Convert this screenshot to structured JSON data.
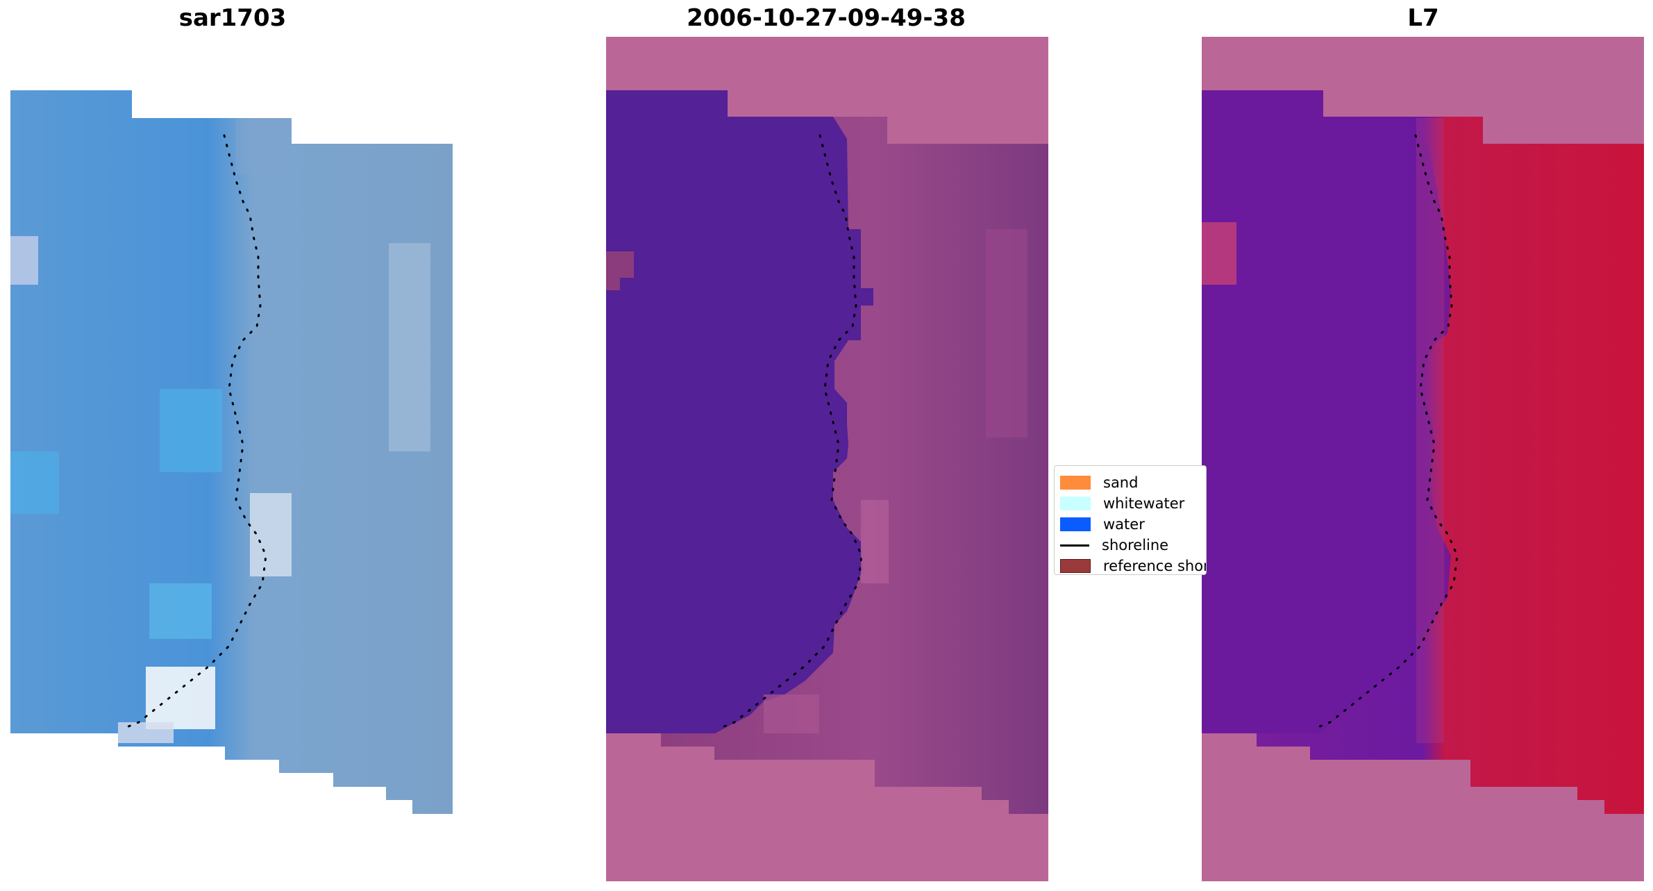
{
  "panels": [
    {
      "title": "sar1703",
      "description_icon": "rgb-composite-image"
    },
    {
      "title": "2006-10-27-09-49-38",
      "description_icon": "classified-image"
    },
    {
      "title": "L7",
      "description_icon": "mndwi-image"
    }
  ],
  "legend": {
    "items": [
      {
        "label": "sand",
        "color": "#ff8c3a",
        "kind": "patch"
      },
      {
        "label": "whitewater",
        "color": "#c8ffff",
        "kind": "patch"
      },
      {
        "label": "water",
        "color": "#0a5cff",
        "kind": "patch"
      },
      {
        "label": "shoreline",
        "color": "#000000",
        "kind": "line"
      },
      {
        "label": "reference shoreline",
        "color": "#9a3a3a",
        "kind": "patch"
      }
    ]
  },
  "colors": {
    "rgb_water": "#4a8fd0",
    "rgb_land": "#7aa3cc",
    "class_water": "#542196",
    "class_land": "#8b3c7c",
    "mask_pink": "#ba6797",
    "mndwi_water": "#6a1a9e",
    "mndwi_land": "#c8103a",
    "shoreline": "#000000"
  }
}
